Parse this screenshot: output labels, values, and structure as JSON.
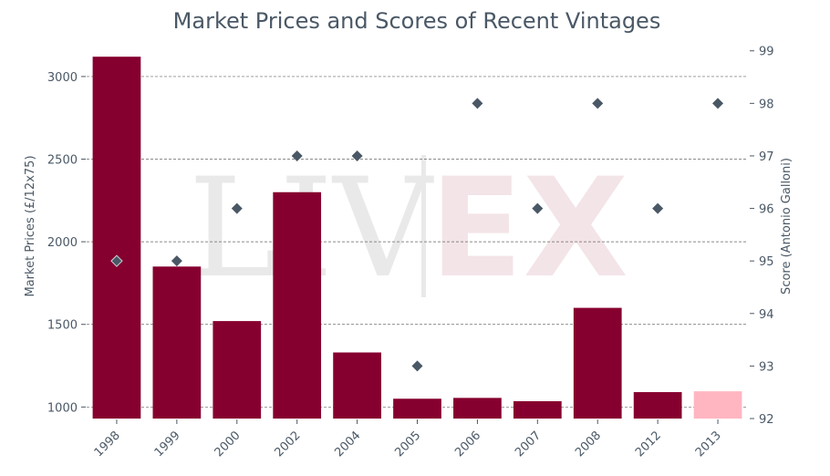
{
  "chart_data": {
    "type": "bar",
    "title": "Market Prices and Scores of Recent Vintages",
    "xlabel": "",
    "ylabel": "Market Prices (£/12x75)",
    "y2label": "Score (Antonio Galloni)",
    "categories": [
      "1998",
      "1999",
      "2000",
      "2002",
      "2004",
      "2005",
      "2006",
      "2007",
      "2008",
      "2012",
      "2013"
    ],
    "series": [
      {
        "kind": "bar",
        "values": [
          3120,
          1850,
          1520,
          2300,
          1330,
          1050,
          1055,
          1035,
          1600,
          1090,
          1095
        ],
        "colors": [
          "#86002f",
          "#86002f",
          "#86002f",
          "#86002f",
          "#86002f",
          "#86002f",
          "#86002f",
          "#86002f",
          "#86002f",
          "#86002f",
          "#ffb6c1"
        ],
        "axis": "left"
      },
      {
        "kind": "scatter",
        "marker": "diamond",
        "values": [
          95,
          95,
          96,
          97,
          97,
          93,
          98,
          96,
          98,
          96,
          98
        ],
        "color": "#4a5866",
        "axis": "right"
      }
    ],
    "ylim": [
      930,
      3270
    ],
    "y2lim": [
      92,
      99.36
    ],
    "yticks": [
      1000,
      1500,
      2000,
      2500,
      3000
    ],
    "y2ticks": [
      92,
      93,
      94,
      95,
      96,
      97,
      98,
      99
    ],
    "grid": "horizontal-dashed",
    "legend": "none"
  },
  "watermark": {
    "left": "LIV",
    "right": "EX"
  }
}
